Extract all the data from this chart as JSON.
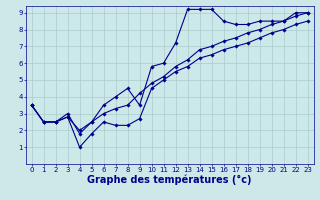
{
  "xlabel": "Graphe des températures (°c)",
  "background_color": "#cce8e8",
  "line_color": "#00008b",
  "grid_color": "#a8cccc",
  "hours": [
    0,
    1,
    2,
    3,
    4,
    5,
    6,
    7,
    8,
    9,
    10,
    11,
    12,
    13,
    14,
    15,
    16,
    17,
    18,
    19,
    20,
    21,
    22,
    23
  ],
  "line_max": [
    3.5,
    2.5,
    2.5,
    3.0,
    1.8,
    2.5,
    3.5,
    4.0,
    4.5,
    3.5,
    5.8,
    6.0,
    7.2,
    9.2,
    9.2,
    9.2,
    8.5,
    8.3,
    8.3,
    8.5,
    8.5,
    8.5,
    9.0,
    9.0
  ],
  "line_mid": [
    3.5,
    2.5,
    2.5,
    2.8,
    2.0,
    2.5,
    3.0,
    3.3,
    3.5,
    4.2,
    4.8,
    5.2,
    5.8,
    6.2,
    6.8,
    7.0,
    7.3,
    7.5,
    7.8,
    8.0,
    8.3,
    8.5,
    8.8,
    9.0
  ],
  "line_min": [
    3.5,
    2.5,
    2.5,
    2.8,
    1.0,
    1.8,
    2.5,
    2.3,
    2.3,
    2.7,
    4.5,
    5.0,
    5.5,
    5.8,
    6.3,
    6.5,
    6.8,
    7.0,
    7.2,
    7.5,
    7.8,
    8.0,
    8.3,
    8.5
  ],
  "ylim": [
    0,
    9.4
  ],
  "xlim": [
    -0.5,
    23.5
  ],
  "yticks": [
    1,
    2,
    3,
    4,
    5,
    6,
    7,
    8,
    9
  ],
  "xticks": [
    0,
    1,
    2,
    3,
    4,
    5,
    6,
    7,
    8,
    9,
    10,
    11,
    12,
    13,
    14,
    15,
    16,
    17,
    18,
    19,
    20,
    21,
    22,
    23
  ],
  "xlabel_fontsize": 7,
  "tick_fontsize": 5,
  "marker": "D",
  "markersize": 1.8,
  "linewidth": 0.8
}
